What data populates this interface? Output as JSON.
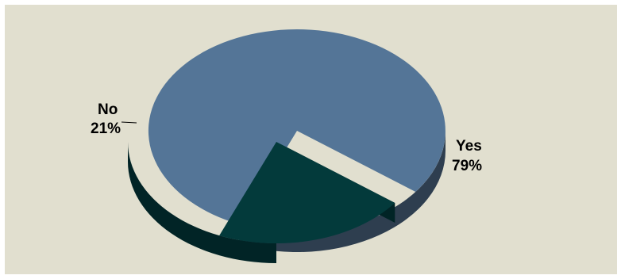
{
  "chart_data": {
    "type": "pie",
    "style": "3d-exploded",
    "title": "",
    "slices": [
      {
        "category": "Yes",
        "value": 79,
        "label": "79%",
        "color": "#547597",
        "side_color": "#2e3e4f"
      },
      {
        "category": "No",
        "value": 21,
        "label": "21%",
        "color": "#033a3b",
        "side_color": "#012426"
      }
    ],
    "legend": "none",
    "background_color": "#e1dfcf"
  }
}
